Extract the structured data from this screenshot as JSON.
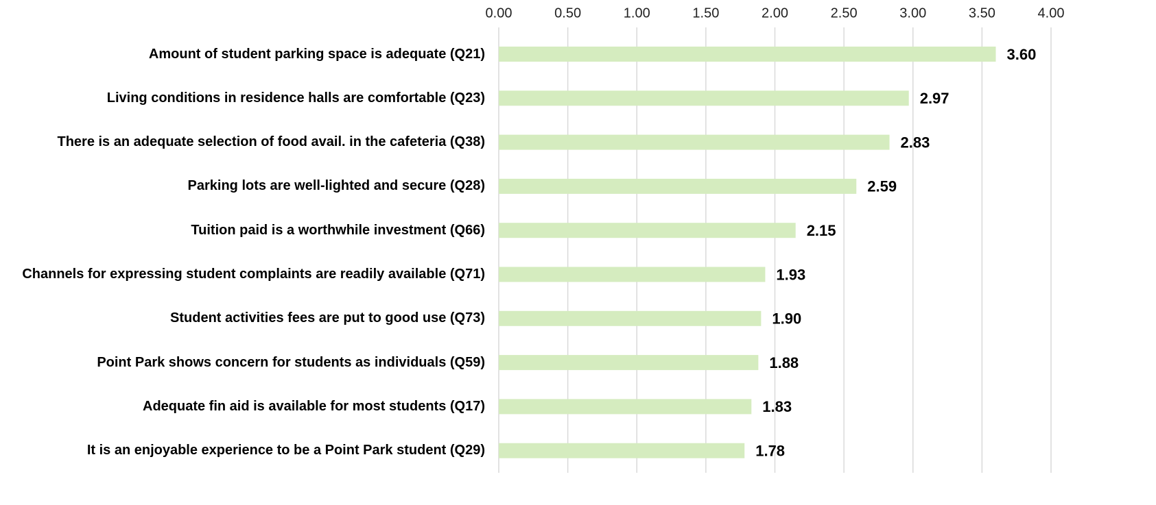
{
  "chart_data": {
    "type": "bar",
    "orientation": "horizontal",
    "categories": [
      "Amount of student parking space is adequate (Q21)",
      "Living conditions in residence halls are comfortable (Q23)",
      "There is an adequate selection of food avail. in the cafeteria (Q38)",
      "Parking lots are well-lighted and secure (Q28)",
      "Tuition paid is a worthwhile investment (Q66)",
      "Channels for expressing student complaints are readily available (Q71)",
      "Student activities fees are put to good use (Q73)",
      "Point Park shows concern for students as individuals (Q59)",
      "Adequate fin aid is available for most students (Q17)",
      "It is an enjoyable experience to be a Point Park student (Q29)"
    ],
    "values": [
      3.6,
      2.97,
      2.83,
      2.59,
      2.15,
      1.93,
      1.9,
      1.88,
      1.83,
      1.78
    ],
    "value_labels": [
      "3.60",
      "2.97",
      "2.83",
      "2.59",
      "2.15",
      "1.93",
      "1.90",
      "1.88",
      "1.83",
      "1.78"
    ],
    "color": "#d5ecbf",
    "xlim": [
      0,
      4
    ],
    "xticks": [
      {
        "value": 0,
        "label": "0.00"
      },
      {
        "value": 0.5,
        "label": "0.50"
      },
      {
        "value": 1,
        "label": "1.00"
      },
      {
        "value": 1.5,
        "label": "1.50"
      },
      {
        "value": 2,
        "label": "2.00"
      },
      {
        "value": 2.5,
        "label": "2.50"
      },
      {
        "value": 3,
        "label": "3.00"
      },
      {
        "value": 3.5,
        "label": "3.50"
      },
      {
        "value": 4,
        "label": "4.00"
      }
    ],
    "grid": true
  }
}
